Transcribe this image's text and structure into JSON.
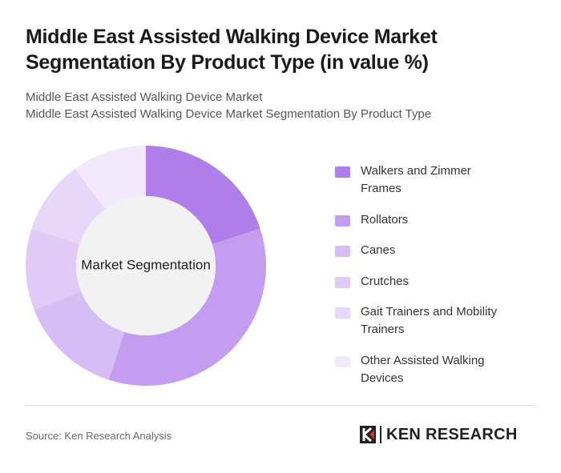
{
  "chart_data": {
    "type": "pie",
    "title": "Middle East Assisted Walking Device Market Segmentation By Product Type (in value %)",
    "subtitle": [
      "Middle East Assisted Walking Device Market",
      "Middle East Assisted Walking Device Market Segmentation By Product Type"
    ],
    "center_label": "Market Segmentation",
    "categories": [
      "Walkers and Zimmer Frames",
      "Rollators",
      "Canes",
      "Crutches",
      "Gait Trainers and Mobility Trainers",
      "Other Assisted Walking Devices"
    ],
    "values": [
      20,
      35,
      14,
      11,
      10,
      10
    ],
    "colors": [
      "#b07ee8",
      "#c49cf0",
      "#d7bdf5",
      "#dfcbf6",
      "#e7d8f9",
      "#f2eafc"
    ],
    "source": "Source: Ken Research Analysis",
    "logo": "KEN RESEARCH"
  }
}
